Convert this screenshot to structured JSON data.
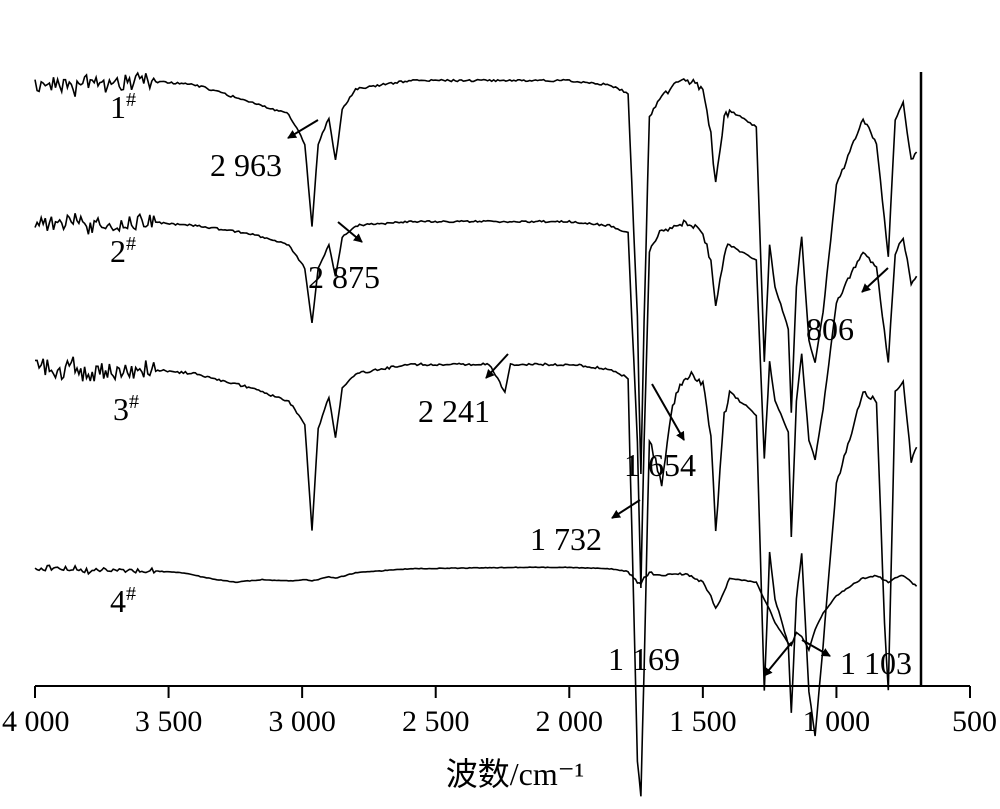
{
  "chart_data": {
    "type": "line",
    "title": "",
    "xlabel": "波数/cm⁻¹",
    "ylabel": "",
    "xlim": [
      4000,
      500
    ],
    "x_reversed": true,
    "x_ticks": [
      4000,
      3500,
      3000,
      2500,
      2000,
      1500,
      1000,
      500
    ],
    "x_tick_labels": [
      "4 000",
      "3 500",
      "3 000",
      "2 500",
      "2 000",
      "1 500",
      "1 000",
      "500"
    ],
    "y_axis_shown": false,
    "grid": false,
    "legend": "none",
    "line_color": "#000000",
    "series": [
      {
        "name": "1#",
        "label_main": "1",
        "label_sup": "#",
        "points": [
          [
            4000,
            96
          ],
          [
            3900,
            96
          ],
          [
            3850,
            95
          ],
          [
            3800,
            97
          ],
          [
            3750,
            95
          ],
          [
            3700,
            96
          ],
          [
            3600,
            97
          ],
          [
            3400,
            96
          ],
          [
            3200,
            92
          ],
          [
            3050,
            89
          ],
          [
            2990,
            82
          ],
          [
            2963,
            62
          ],
          [
            2940,
            82
          ],
          [
            2900,
            88
          ],
          [
            2875,
            78
          ],
          [
            2850,
            90
          ],
          [
            2800,
            95
          ],
          [
            2600,
            97
          ],
          [
            2200,
            97
          ],
          [
            2000,
            97
          ],
          [
            1850,
            96
          ],
          [
            1780,
            94
          ],
          [
            1745,
            40
          ],
          [
            1732,
            3
          ],
          [
            1720,
            40
          ],
          [
            1700,
            88
          ],
          [
            1654,
            93
          ],
          [
            1600,
            96
          ],
          [
            1550,
            97
          ],
          [
            1500,
            95
          ],
          [
            1470,
            84
          ],
          [
            1452,
            72
          ],
          [
            1420,
            88
          ],
          [
            1400,
            90
          ],
          [
            1300,
            86
          ],
          [
            1270,
            30
          ],
          [
            1250,
            58
          ],
          [
            1230,
            48
          ],
          [
            1180,
            38
          ],
          [
            1169,
            18
          ],
          [
            1150,
            48
          ],
          [
            1130,
            60
          ],
          [
            1103,
            35
          ],
          [
            1080,
            30
          ],
          [
            1050,
            42
          ],
          [
            1000,
            72
          ],
          [
            950,
            80
          ],
          [
            900,
            88
          ],
          [
            850,
            82
          ],
          [
            806,
            55
          ],
          [
            780,
            88
          ],
          [
            750,
            92
          ],
          [
            720,
            78
          ],
          [
            700,
            80
          ]
        ]
      },
      {
        "name": "2#",
        "label_main": "2",
        "label_sup": "#",
        "points": [
          [
            4000,
            96
          ],
          [
            3900,
            95
          ],
          [
            3850,
            97
          ],
          [
            3800,
            94
          ],
          [
            3750,
            96
          ],
          [
            3700,
            95
          ],
          [
            3600,
            96
          ],
          [
            3400,
            95
          ],
          [
            3200,
            93
          ],
          [
            3050,
            90
          ],
          [
            2990,
            84
          ],
          [
            2963,
            70
          ],
          [
            2940,
            84
          ],
          [
            2900,
            90
          ],
          [
            2875,
            82
          ],
          [
            2850,
            92
          ],
          [
            2800,
            95
          ],
          [
            2600,
            96
          ],
          [
            2200,
            96
          ],
          [
            2000,
            96
          ],
          [
            1850,
            95
          ],
          [
            1780,
            93
          ],
          [
            1745,
            40
          ],
          [
            1732,
            2
          ],
          [
            1720,
            40
          ],
          [
            1700,
            88
          ],
          [
            1654,
            94
          ],
          [
            1600,
            95
          ],
          [
            1550,
            96
          ],
          [
            1500,
            93
          ],
          [
            1470,
            86
          ],
          [
            1452,
            74
          ],
          [
            1420,
            88
          ],
          [
            1400,
            90
          ],
          [
            1300,
            86
          ],
          [
            1270,
            35
          ],
          [
            1250,
            60
          ],
          [
            1230,
            50
          ],
          [
            1180,
            42
          ],
          [
            1169,
            15
          ],
          [
            1150,
            50
          ],
          [
            1130,
            62
          ],
          [
            1103,
            40
          ],
          [
            1080,
            35
          ],
          [
            1050,
            48
          ],
          [
            1000,
            75
          ],
          [
            950,
            82
          ],
          [
            900,
            88
          ],
          [
            850,
            84
          ],
          [
            806,
            60
          ],
          [
            780,
            88
          ],
          [
            750,
            92
          ],
          [
            720,
            80
          ],
          [
            700,
            82
          ]
        ]
      },
      {
        "name": "3#",
        "label_main": "3",
        "label_sup": "#",
        "points": [
          [
            4000,
            96
          ],
          [
            3900,
            94
          ],
          [
            3850,
            96
          ],
          [
            3800,
            93
          ],
          [
            3750,
            95
          ],
          [
            3700,
            94
          ],
          [
            3600,
            95
          ],
          [
            3400,
            94
          ],
          [
            3200,
            91
          ],
          [
            3050,
            88
          ],
          [
            2990,
            83
          ],
          [
            2963,
            60
          ],
          [
            2940,
            82
          ],
          [
            2900,
            89
          ],
          [
            2875,
            80
          ],
          [
            2850,
            91
          ],
          [
            2800,
            94
          ],
          [
            2600,
            96
          ],
          [
            2300,
            96
          ],
          [
            2260,
            92
          ],
          [
            2241,
            90
          ],
          [
            2220,
            96
          ],
          [
            2000,
            96
          ],
          [
            1850,
            95
          ],
          [
            1780,
            93
          ],
          [
            1745,
            10
          ],
          [
            1732,
            2
          ],
          [
            1720,
            30
          ],
          [
            1700,
            80
          ],
          [
            1654,
            70
          ],
          [
            1620,
            85
          ],
          [
            1600,
            90
          ],
          [
            1550,
            94
          ],
          [
            1500,
            92
          ],
          [
            1470,
            80
          ],
          [
            1452,
            60
          ],
          [
            1420,
            85
          ],
          [
            1400,
            90
          ],
          [
            1300,
            85
          ],
          [
            1270,
            25
          ],
          [
            1250,
            55
          ],
          [
            1230,
            45
          ],
          [
            1180,
            35
          ],
          [
            1169,
            20
          ],
          [
            1150,
            45
          ],
          [
            1130,
            55
          ],
          [
            1103,
            25
          ],
          [
            1080,
            15
          ],
          [
            1050,
            35
          ],
          [
            1000,
            70
          ],
          [
            950,
            80
          ],
          [
            900,
            90
          ],
          [
            850,
            88
          ],
          [
            820,
            40
          ],
          [
            806,
            25
          ],
          [
            780,
            90
          ],
          [
            750,
            92
          ],
          [
            720,
            75
          ],
          [
            700,
            78
          ]
        ]
      },
      {
        "name": "4#",
        "label_main": "4",
        "label_sup": "#",
        "points": [
          [
            4000,
            96
          ],
          [
            3900,
            95
          ],
          [
            3850,
            96
          ],
          [
            3800,
            93
          ],
          [
            3750,
            95
          ],
          [
            3700,
            94
          ],
          [
            3600,
            94
          ],
          [
            3450,
            92
          ],
          [
            3350,
            88
          ],
          [
            3250,
            85
          ],
          [
            3150,
            87
          ],
          [
            3050,
            86
          ],
          [
            2990,
            87
          ],
          [
            2963,
            86
          ],
          [
            2900,
            89
          ],
          [
            2875,
            88
          ],
          [
            2800,
            92
          ],
          [
            2600,
            95
          ],
          [
            2200,
            96
          ],
          [
            2000,
            96
          ],
          [
            1850,
            95
          ],
          [
            1780,
            93
          ],
          [
            1745,
            85
          ],
          [
            1732,
            83
          ],
          [
            1720,
            88
          ],
          [
            1700,
            92
          ],
          [
            1654,
            90
          ],
          [
            1600,
            92
          ],
          [
            1550,
            90
          ],
          [
            1500,
            85
          ],
          [
            1470,
            75
          ],
          [
            1452,
            65
          ],
          [
            1420,
            78
          ],
          [
            1400,
            88
          ],
          [
            1300,
            85
          ],
          [
            1270,
            72
          ],
          [
            1250,
            65
          ],
          [
            1230,
            55
          ],
          [
            1180,
            40
          ],
          [
            1169,
            38
          ],
          [
            1150,
            48
          ],
          [
            1130,
            45
          ],
          [
            1103,
            35
          ],
          [
            1080,
            50
          ],
          [
            1050,
            62
          ],
          [
            1000,
            75
          ],
          [
            950,
            82
          ],
          [
            900,
            88
          ],
          [
            850,
            90
          ],
          [
            806,
            85
          ],
          [
            780,
            88
          ],
          [
            750,
            90
          ],
          [
            720,
            85
          ],
          [
            700,
            82
          ]
        ]
      }
    ],
    "annotations": [
      {
        "text": "2 963",
        "x": 2963
      },
      {
        "text": "2 875",
        "x": 2875
      },
      {
        "text": "2 241",
        "x": 2241
      },
      {
        "text": "1 654",
        "x": 1654
      },
      {
        "text": "1 732",
        "x": 1732
      },
      {
        "text": "806",
        "x": 806
      },
      {
        "text": "1 169",
        "x": 1169
      },
      {
        "text": "1 103",
        "x": 1103
      }
    ]
  }
}
